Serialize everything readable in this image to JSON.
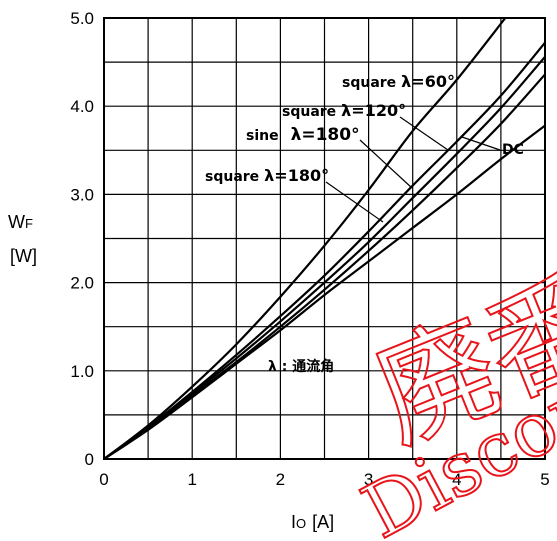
{
  "chart_data": {
    "type": "line",
    "xlabel_main": "I",
    "xlabel_sub": "O",
    "xlabel_unit": "[A]",
    "ylabel_main": "W",
    "ylabel_sub": "F",
    "ylabel_unit": "[W]",
    "xlim": [
      0,
      5
    ],
    "ylim": [
      0,
      5
    ],
    "x_ticks": [
      "0",
      "1",
      "2",
      "3",
      "4",
      "5"
    ],
    "y_ticks": [
      "0",
      "1.0",
      "2.0",
      "3.0",
      "4.0",
      "5.0"
    ],
    "grid": true,
    "series": [
      {
        "name": "square λ=60°",
        "x": [
          0,
          0.5,
          1.0,
          1.5,
          2.0,
          2.5,
          3.0,
          3.5,
          4.0,
          4.55
        ],
        "y": [
          0,
          0.38,
          0.82,
          1.3,
          1.84,
          2.42,
          3.05,
          3.72,
          4.3,
          5.0
        ]
      },
      {
        "name": "square λ=120°",
        "x": [
          0,
          0.5,
          1.0,
          1.5,
          2.0,
          2.5,
          3.0,
          3.5,
          4.0,
          4.5,
          5.0
        ],
        "y": [
          0,
          0.36,
          0.76,
          1.18,
          1.62,
          2.08,
          2.58,
          3.1,
          3.6,
          4.12,
          4.72
        ]
      },
      {
        "name": "sine λ=180°",
        "x": [
          0,
          0.5,
          1.0,
          1.5,
          2.0,
          2.5,
          3.0,
          3.5,
          4.0,
          4.5,
          5.0
        ],
        "y": [
          0,
          0.35,
          0.74,
          1.14,
          1.56,
          2.0,
          2.46,
          2.96,
          3.46,
          3.98,
          4.56
        ]
      },
      {
        "name": "square λ=180°",
        "x": [
          0,
          0.5,
          1.0,
          1.5,
          2.0,
          2.5,
          3.0,
          3.5,
          4.0,
          4.5,
          5.0
        ],
        "y": [
          0,
          0.34,
          0.72,
          1.1,
          1.5,
          1.92,
          2.36,
          2.82,
          3.3,
          3.8,
          4.36
        ]
      },
      {
        "name": "DC",
        "x": [
          0,
          0.5,
          1.0,
          1.5,
          2.0,
          2.5,
          3.0,
          3.5,
          4.0,
          4.5,
          5.0
        ],
        "y": [
          0,
          0.33,
          0.7,
          1.08,
          1.46,
          1.86,
          2.24,
          2.62,
          3.0,
          3.4,
          3.78
        ]
      }
    ],
    "annotations": {
      "sq60_word": "square",
      "sq60_lambda": "λ=60°",
      "sq120_word": "square",
      "sq120_lambda": "λ=120°",
      "sine_word": "sine",
      "sine_lambda": "λ=180°",
      "sq180_word": "square",
      "sq180_lambda": "λ=180°",
      "dc": "DC",
      "note": "λ : 通流角"
    }
  },
  "watermark": {
    "kanji": "廃番",
    "text": "Discon",
    "color": "#e8141a"
  }
}
